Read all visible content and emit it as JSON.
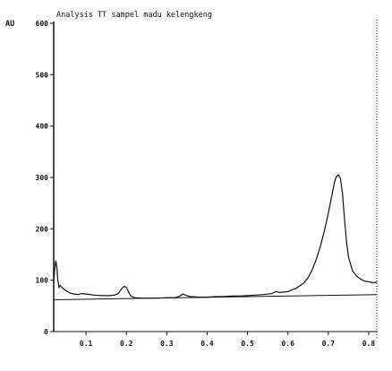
{
  "chart_data": {
    "type": "line",
    "title": "Analysis TT sampel madu kelengkeng",
    "ylabel": "AU",
    "xlabel": "",
    "xlim": [
      0.02,
      0.82
    ],
    "ylim": [
      0,
      600
    ],
    "y_ticks": [
      0,
      100,
      200,
      300,
      400,
      500,
      600
    ],
    "y_tick_labels": [
      "0",
      "100",
      "200",
      "300",
      "400",
      "500",
      "600"
    ],
    "x_ticks": [
      0.1,
      0.2,
      0.3,
      0.4,
      0.5,
      0.6,
      0.7,
      0.8
    ],
    "x_tick_labels": [
      "0.1",
      "0.2",
      "0.3",
      "0.4",
      "0.5",
      "0.6",
      "0.7",
      "0.8"
    ],
    "grid": false,
    "colors": {
      "signal": "#111111",
      "baseline": "#111111",
      "axis": "#111111"
    },
    "series": [
      {
        "x": [
          0.02,
          0.022,
          0.025,
          0.028,
          0.03,
          0.033,
          0.036,
          0.04,
          0.05,
          0.06,
          0.07,
          0.08,
          0.09,
          0.1,
          0.12,
          0.14,
          0.16,
          0.17,
          0.18,
          0.185,
          0.19,
          0.195,
          0.2,
          0.205,
          0.21,
          0.22,
          0.24,
          0.26,
          0.28,
          0.3,
          0.32,
          0.33,
          0.34,
          0.35,
          0.36,
          0.38,
          0.4,
          0.42,
          0.44,
          0.46,
          0.48,
          0.5,
          0.52,
          0.54,
          0.56,
          0.57,
          0.58,
          0.6,
          0.62,
          0.64,
          0.65,
          0.66,
          0.67,
          0.68,
          0.69,
          0.7,
          0.71,
          0.715,
          0.72,
          0.725,
          0.73,
          0.735,
          0.74,
          0.745,
          0.75,
          0.76,
          0.77,
          0.78,
          0.79,
          0.8,
          0.81,
          0.82
        ],
        "y": [
          95,
          118,
          138,
          125,
          102,
          86,
          90,
          86,
          80,
          75,
          73,
          72,
          74,
          73,
          71,
          70,
          70,
          71,
          74,
          80,
          85,
          88,
          86,
          78,
          70,
          66,
          65,
          65,
          65,
          66,
          66,
          68,
          73,
          70,
          68,
          67,
          67,
          68,
          68,
          69,
          69,
          70,
          71,
          72,
          74,
          78,
          76,
          78,
          84,
          95,
          105,
          120,
          140,
          165,
          195,
          230,
          270,
          290,
          302,
          305,
          298,
          270,
          220,
          175,
          145,
          118,
          108,
          102,
          98,
          97,
          95,
          96
        ]
      },
      {
        "x": [
          0.02,
          0.82
        ],
        "y": [
          62,
          72
        ]
      }
    ]
  }
}
